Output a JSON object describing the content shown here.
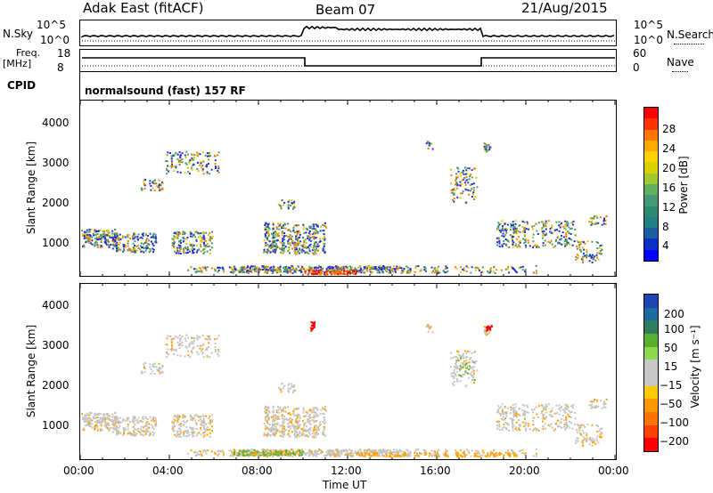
{
  "header": {
    "station": "Adak East (fitACF)",
    "beam": "Beam 07",
    "date": "21/Aug/2015"
  },
  "noise_panel": {
    "left_label": "N.Sky",
    "right_label": "N.Search",
    "left_ticks": [
      "10^5",
      "10^0"
    ],
    "right_ticks": [
      "10^5",
      "10^0"
    ]
  },
  "freq_panel": {
    "left_label_1": "Freq.",
    "left_label_2": "[MHz]",
    "right_label": "Nave",
    "left_ticks": [
      "18",
      "8"
    ],
    "right_ticks": [
      "60",
      "0"
    ]
  },
  "cpid_panel": {
    "label": "CPID",
    "text": "normalsound (fast) 157 RF"
  },
  "chart_data": [
    {
      "type": "heatmap",
      "name": "power",
      "ylabel": "Slant Range [km]",
      "y_ticks": [
        "4000",
        "3000",
        "2000",
        "1000"
      ],
      "colorbar_label": "Power [dB]",
      "colorbar_ticks": [
        "28",
        "24",
        "20",
        "16",
        "12",
        "8",
        "4"
      ],
      "colorbar_colors": [
        "#ff0000",
        "#ff3300",
        "#ff7700",
        "#ffaa00",
        "#ffd200",
        "#ddd000",
        "#a0c830",
        "#60b060",
        "#449977",
        "#2c8a72",
        "#237f86",
        "#1a5fa0",
        "#0a30c8",
        "#0000ff"
      ]
    },
    {
      "type": "heatmap",
      "name": "velocity",
      "ylabel": "Slant Range [km]",
      "y_ticks": [
        "4000",
        "3000",
        "2000",
        "1000"
      ],
      "colorbar_label": "Velocity [m s⁻¹]",
      "colorbar_ticks": [
        "200",
        "100",
        "50",
        "15",
        "−15",
        "−50",
        "−100",
        "−200"
      ],
      "colorbar_colors": [
        "#1d43b5",
        "#1d6a9e",
        "#2e7d5e",
        "#58b02e",
        "#8ed84c",
        "#c8c8c8",
        "#c8c8c8",
        "#ffc800",
        "#ff9900",
        "#ff7400",
        "#ff4000",
        "#ff0000"
      ]
    }
  ],
  "x_axis": {
    "ticks": [
      "00:00",
      "04:00",
      "08:00",
      "12:00",
      "16:00",
      "20:00",
      "00:00"
    ],
    "label": "Time UT"
  },
  "colors": {
    "power_blue": "#1f2fd6",
    "power_green": "#4a9a66",
    "power_yellow": "#d9c300",
    "power_orange": "#ff7a00",
    "power_red": "#ff0000",
    "vel_gray": "#c4c4c4",
    "vel_orange": "#ffa200",
    "vel_green": "#5ab030",
    "vel_blue": "#2040b0",
    "vel_red": "#ff0000"
  }
}
